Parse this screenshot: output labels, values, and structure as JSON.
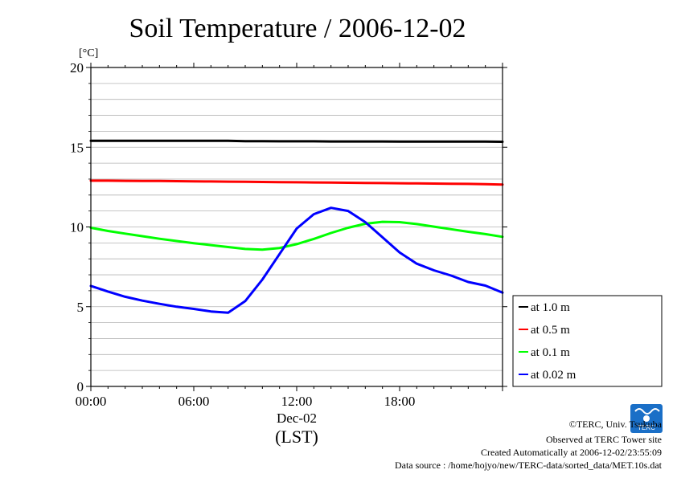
{
  "chart_data": {
    "type": "line",
    "title": "Soil Temperature / 2006-12-02",
    "ylabel_unit": "[°C]",
    "xlabel_date": "Dec-02",
    "xlabel_zone": "(LST)",
    "ylim": [
      0,
      20
    ],
    "xlim_hours": [
      0,
      24
    ],
    "x_ticks": [
      "00:00",
      "06:00",
      "12:00",
      "18:00"
    ],
    "x_tick_hours": [
      0,
      6,
      12,
      18
    ],
    "y_ticks": [
      "0",
      "5",
      "10",
      "15",
      "20"
    ],
    "y_tick_values": [
      0,
      5,
      10,
      15,
      20
    ],
    "grid": true,
    "legend_position": "right",
    "x_hours": [
      0,
      1,
      2,
      3,
      4,
      5,
      6,
      7,
      8,
      9,
      10,
      11,
      12,
      13,
      14,
      15,
      16,
      17,
      18,
      19,
      20,
      21,
      22,
      23,
      24
    ],
    "series": [
      {
        "name": "at 1.0 m",
        "color": "#000000",
        "values": [
          15.4,
          15.4,
          15.4,
          15.4,
          15.4,
          15.4,
          15.4,
          15.4,
          15.4,
          15.38,
          15.38,
          15.37,
          15.37,
          15.37,
          15.36,
          15.36,
          15.36,
          15.36,
          15.35,
          15.35,
          15.35,
          15.35,
          15.35,
          15.35,
          15.34
        ]
      },
      {
        "name": "at 0.5 m",
        "color": "#ff0000",
        "values": [
          12.9,
          12.9,
          12.89,
          12.88,
          12.88,
          12.87,
          12.86,
          12.85,
          12.84,
          12.83,
          12.82,
          12.81,
          12.8,
          12.79,
          12.78,
          12.77,
          12.76,
          12.75,
          12.74,
          12.73,
          12.72,
          12.71,
          12.7,
          12.68,
          12.66
        ]
      },
      {
        "name": "at 0.1 m",
        "color": "#00ff00",
        "values": [
          9.95,
          9.75,
          9.58,
          9.42,
          9.26,
          9.12,
          8.98,
          8.86,
          8.74,
          8.62,
          8.58,
          8.68,
          8.92,
          9.25,
          9.62,
          9.95,
          10.2,
          10.32,
          10.3,
          10.18,
          10.02,
          9.86,
          9.7,
          9.55,
          9.38
        ]
      },
      {
        "name": "at 0.02 m",
        "color": "#0000ff",
        "values": [
          6.3,
          5.95,
          5.62,
          5.38,
          5.18,
          5.0,
          4.86,
          4.7,
          4.62,
          5.35,
          6.7,
          8.3,
          9.9,
          10.8,
          11.2,
          11.0,
          10.3,
          9.35,
          8.4,
          7.7,
          7.28,
          6.95,
          6.55,
          6.32,
          5.88
        ]
      }
    ]
  },
  "credits": {
    "copyright": "©TERC, Univ. Tsukuba",
    "observed": "Observed at TERC Tower site",
    "created": "Created Automatically at 2006-12-02/23:55:09",
    "source": "Data source : /home/hojyo/new/TERC-data/sorted_data/MET.10s.dat",
    "logo_text": "TERC",
    "logo_color": "#1a6fc7"
  }
}
